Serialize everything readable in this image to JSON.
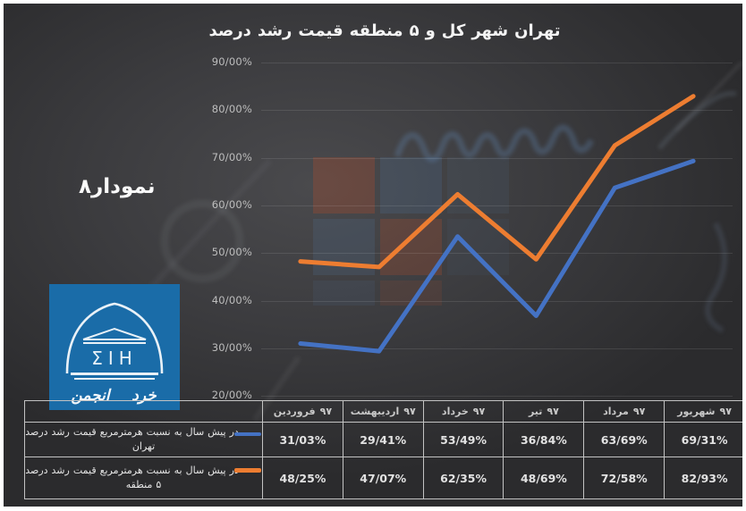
{
  "chart_data": {
    "type": "line",
    "title": "درصد رشد قیمت منطقه ۵ و کل شهر تهران",
    "categories": [
      "فروردین ۹۷",
      "اردیبهشت ۹۷",
      "خرداد ۹۷",
      "تیر ۹۷",
      "مرداد ۹۷",
      "شهریور ۹۷"
    ],
    "series": [
      {
        "name": "درصد رشد قیمت هرمترمربع نسبت به سال پیش در تهران",
        "label_line1": "درصد رشد قیمت هرمترمربع نسبت به سال پیش در",
        "label_line2": "تهران",
        "color": "#4472C4",
        "values": [
          31.03,
          29.41,
          53.49,
          36.84,
          63.69,
          69.31
        ],
        "display_values": [
          "31/03%",
          "29/41%",
          "53/49%",
          "36/84%",
          "63/69%",
          "69/31%"
        ]
      },
      {
        "name": "درصد رشد قیمت هرمترمربع نسبت به سال پیش در منطقه ۵",
        "label_line1": "درصد رشد قیمت هرمترمربع نسبت به سال پیش در",
        "label_line2": "منطقه ۵",
        "color": "#ED7D31",
        "values": [
          48.25,
          47.07,
          62.35,
          48.69,
          72.58,
          82.93
        ],
        "display_values": [
          "48/25%",
          "47/07%",
          "62/35%",
          "48/69%",
          "72/58%",
          "82/93%"
        ]
      }
    ],
    "ylim": [
      20,
      90
    ],
    "ytick_step": 10,
    "ytick_labels": [
      "90/00%",
      "80/00%",
      "70/00%",
      "60/00%",
      "50/00%",
      "40/00%",
      "30/00%",
      "20/00%"
    ],
    "grid": true,
    "legend_position": "table-left"
  },
  "labels": {
    "figure_label": "نمودار۸"
  },
  "logo": {
    "words": [
      "انجمن",
      "خرد"
    ],
    "monogram": "ΣIH",
    "background": "#1A6CA8"
  }
}
